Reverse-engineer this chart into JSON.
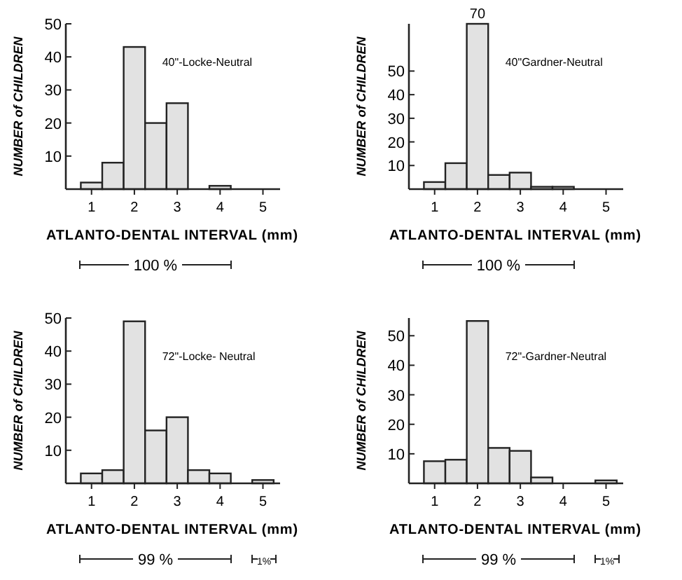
{
  "chart_data": [
    {
      "type": "histogram",
      "title": "40\"-Locke-Neutral",
      "xlabel": "ATLANTO-DENTAL INTERVAL (mm)",
      "ylabel": "NUMBER of CHILDREN",
      "bins": [
        0.75,
        1.25,
        1.75,
        2.25,
        2.75,
        3.25,
        3.75,
        4.25,
        4.75,
        5.25
      ],
      "values": [
        2,
        8,
        43,
        20,
        26,
        0,
        1,
        0,
        0
      ],
      "color": "#e2e2e2",
      "xlim": [
        0.4,
        5.4
      ],
      "ylim": [
        0,
        50
      ],
      "xticks": [
        1,
        2,
        3,
        4,
        5
      ],
      "yticks": [
        10,
        20,
        30,
        40,
        50
      ],
      "grid": false,
      "annotations": [
        "100 %"
      ]
    },
    {
      "type": "histogram",
      "title": "40\"Gardner-Neutral",
      "xlabel": "ATLANTO-DENTAL INTERVAL (mm)",
      "ylabel": "NUMBER of CHILDREN",
      "bins": [
        0.75,
        1.25,
        1.75,
        2.25,
        2.75,
        3.25,
        3.75,
        4.25,
        4.75,
        5.25
      ],
      "values": [
        3,
        11,
        70,
        6,
        7,
        1,
        1,
        0,
        0
      ],
      "value_labels": [
        null,
        null,
        "70",
        null,
        null,
        null,
        null,
        null,
        null
      ],
      "color": "#e2e2e2",
      "xlim": [
        0.4,
        5.4
      ],
      "ylim": [
        0,
        70
      ],
      "xticks": [
        1,
        2,
        3,
        4,
        5
      ],
      "yticks": [
        10,
        20,
        30,
        40,
        50
      ],
      "grid": false,
      "annotations": [
        "100 %"
      ]
    },
    {
      "type": "histogram",
      "title": "72\"-Locke- Neutral",
      "xlabel": "ATLANTO-DENTAL INTERVAL (mm)",
      "ylabel": "NUMBER of CHILDREN",
      "bins": [
        0.75,
        1.25,
        1.75,
        2.25,
        2.75,
        3.25,
        3.75,
        4.25,
        4.75,
        5.25
      ],
      "values": [
        3,
        4,
        49,
        16,
        20,
        4,
        3,
        0,
        1
      ],
      "color": "#e2e2e2",
      "xlim": [
        0.4,
        5.4
      ],
      "ylim": [
        0,
        50
      ],
      "xticks": [
        1,
        2,
        3,
        4,
        5
      ],
      "yticks": [
        10,
        20,
        30,
        40,
        50
      ],
      "grid": false,
      "annotations": [
        "99 %",
        "1%"
      ]
    },
    {
      "type": "histogram",
      "title": "72\"-Gardner-Neutral",
      "xlabel": "ATLANTO-DENTAL INTERVAL (mm)",
      "ylabel": "NUMBER of CHILDREN",
      "bins": [
        0.75,
        1.25,
        1.75,
        2.25,
        2.75,
        3.25,
        3.75,
        4.25,
        4.75,
        5.25
      ],
      "values": [
        7.5,
        8,
        55,
        12,
        11,
        2,
        0,
        0,
        1
      ],
      "color": "#e2e2e2",
      "xlim": [
        0.4,
        5.4
      ],
      "ylim": [
        0,
        56
      ],
      "xticks": [
        1,
        2,
        3,
        4,
        5
      ],
      "yticks": [
        10,
        20,
        30,
        40,
        50
      ],
      "grid": false,
      "annotations": [
        "99 %",
        "1%"
      ]
    }
  ]
}
